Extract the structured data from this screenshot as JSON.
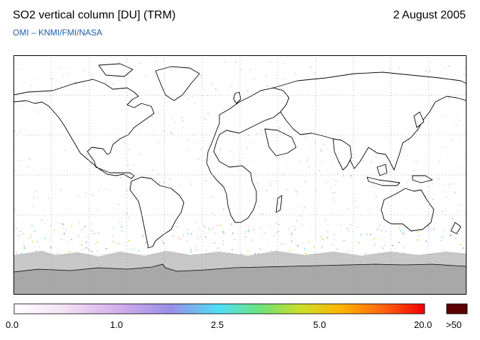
{
  "header": {
    "title": "SO2 vertical column [DU] (TRM)",
    "date": "2 August 2005",
    "credit": "OMI  –  KNMI/FMI/NASA"
  },
  "map": {
    "projection": "equirectangular",
    "lon_range": [
      -180,
      180
    ],
    "lat_range": [
      -90,
      90
    ],
    "lon_ticks": [
      "-150",
      "-120",
      "-90",
      "-60",
      "-30",
      "0",
      "30",
      "60",
      "90",
      "120",
      "150"
    ],
    "lat_ticks": [
      "60",
      "30",
      "0",
      "-30",
      "-60"
    ],
    "graticule": true,
    "gridline_style": "dotted",
    "no_data_color": "#c8c8c8",
    "land_mask_color": "#a6a6a6"
  },
  "colorbar": {
    "labels": [
      "0.0",
      "1.0",
      "2.5",
      "5.0",
      "20.0"
    ],
    "overflow_label": ">50",
    "overflow_color": "#5a0000",
    "colors": [
      "#ffffff",
      "#f3e2f3",
      "#d5b0ec",
      "#9a8ee8",
      "#4fe0f6",
      "#6ee27a",
      "#ccdf28",
      "#ffb200",
      "#ff5a10",
      "#ee0000"
    ]
  }
}
